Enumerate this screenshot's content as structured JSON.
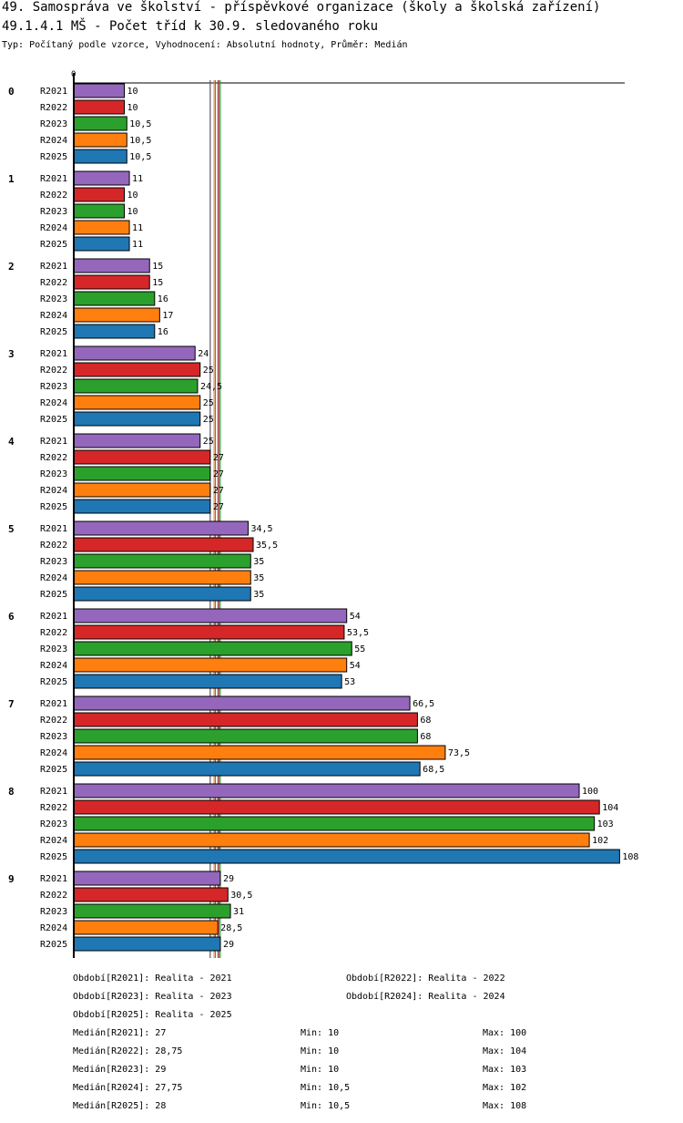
{
  "header": {
    "title": "49. Samospráva ve školství - příspěvkové organizace (školy a školská zařízení)",
    "subtitle": "49.1.4.1 MŠ - Počet tříd k 30.9. sledovaného roku",
    "info": "Typ: Počítaný podle vzorce, Vyhodnocení: Absolutní hodnoty, Průměr: Medián"
  },
  "colors": {
    "R2021": "#9467bd",
    "R2022": "#d62728",
    "R2023": "#2ca02c",
    "R2024": "#ff7f0e",
    "R2025": "#1f77b4"
  },
  "chart_data": {
    "type": "bar",
    "orientation": "horizontal",
    "x_origin_label": "0",
    "xlim": [
      0,
      108
    ],
    "categories": [
      "0",
      "1",
      "2",
      "3",
      "4",
      "5",
      "6",
      "7",
      "8",
      "9"
    ],
    "series": [
      {
        "name": "R2021",
        "values": [
          10,
          11,
          15,
          24,
          25,
          34.5,
          54,
          66.5,
          100,
          29
        ],
        "labels": [
          "10",
          "11",
          "15",
          "24",
          "25",
          "34,5",
          "54",
          "66,5",
          "100",
          "29"
        ]
      },
      {
        "name": "R2022",
        "values": [
          10,
          10,
          15,
          25,
          27,
          35.5,
          53.5,
          68,
          104,
          30.5
        ],
        "labels": [
          "10",
          "10",
          "15",
          "25",
          "27",
          "35,5",
          "53,5",
          "68",
          "104",
          "30,5"
        ]
      },
      {
        "name": "R2023",
        "values": [
          10.5,
          10,
          16,
          24.5,
          27,
          35,
          55,
          68,
          103,
          31
        ],
        "labels": [
          "10,5",
          "10",
          "16",
          "24,5",
          "27",
          "35",
          "55",
          "68",
          "103",
          "31"
        ]
      },
      {
        "name": "R2024",
        "values": [
          10.5,
          11,
          17,
          25,
          27,
          35,
          54,
          73.5,
          102,
          28.5
        ],
        "labels": [
          "10,5",
          "11",
          "17",
          "25",
          "27",
          "35",
          "54",
          "73,5",
          "102",
          "28,5"
        ]
      },
      {
        "name": "R2025",
        "values": [
          10.5,
          11,
          16,
          25,
          27,
          35,
          53,
          68.5,
          108,
          29
        ],
        "labels": [
          "10,5",
          "11",
          "16",
          "25",
          "27",
          "35",
          "53",
          "68,5",
          "108",
          "29"
        ]
      }
    ],
    "median_lines": {
      "R2021": 27,
      "R2022": 28.75,
      "R2023": 29,
      "R2024": 27.75,
      "R2025": 28
    }
  },
  "legend": {
    "periods": [
      "Období[R2021]: Realita - 2021",
      "Období[R2022]: Realita - 2022",
      "Období[R2023]: Realita - 2023",
      "Období[R2024]: Realita - 2024",
      "Období[R2025]: Realita - 2025"
    ],
    "stats": [
      {
        "median": "Medián[R2021]: 27",
        "min": "Min: 10",
        "max": "Max: 100"
      },
      {
        "median": "Medián[R2022]: 28,75",
        "min": "Min: 10",
        "max": "Max: 104"
      },
      {
        "median": "Medián[R2023]: 29",
        "min": "Min: 10",
        "max": "Max: 103"
      },
      {
        "median": "Medián[R2024]: 27,75",
        "min": "Min: 10,5",
        "max": "Max: 102"
      },
      {
        "median": "Medián[R2025]: 28",
        "min": "Min: 10,5",
        "max": "Max: 108"
      }
    ]
  }
}
